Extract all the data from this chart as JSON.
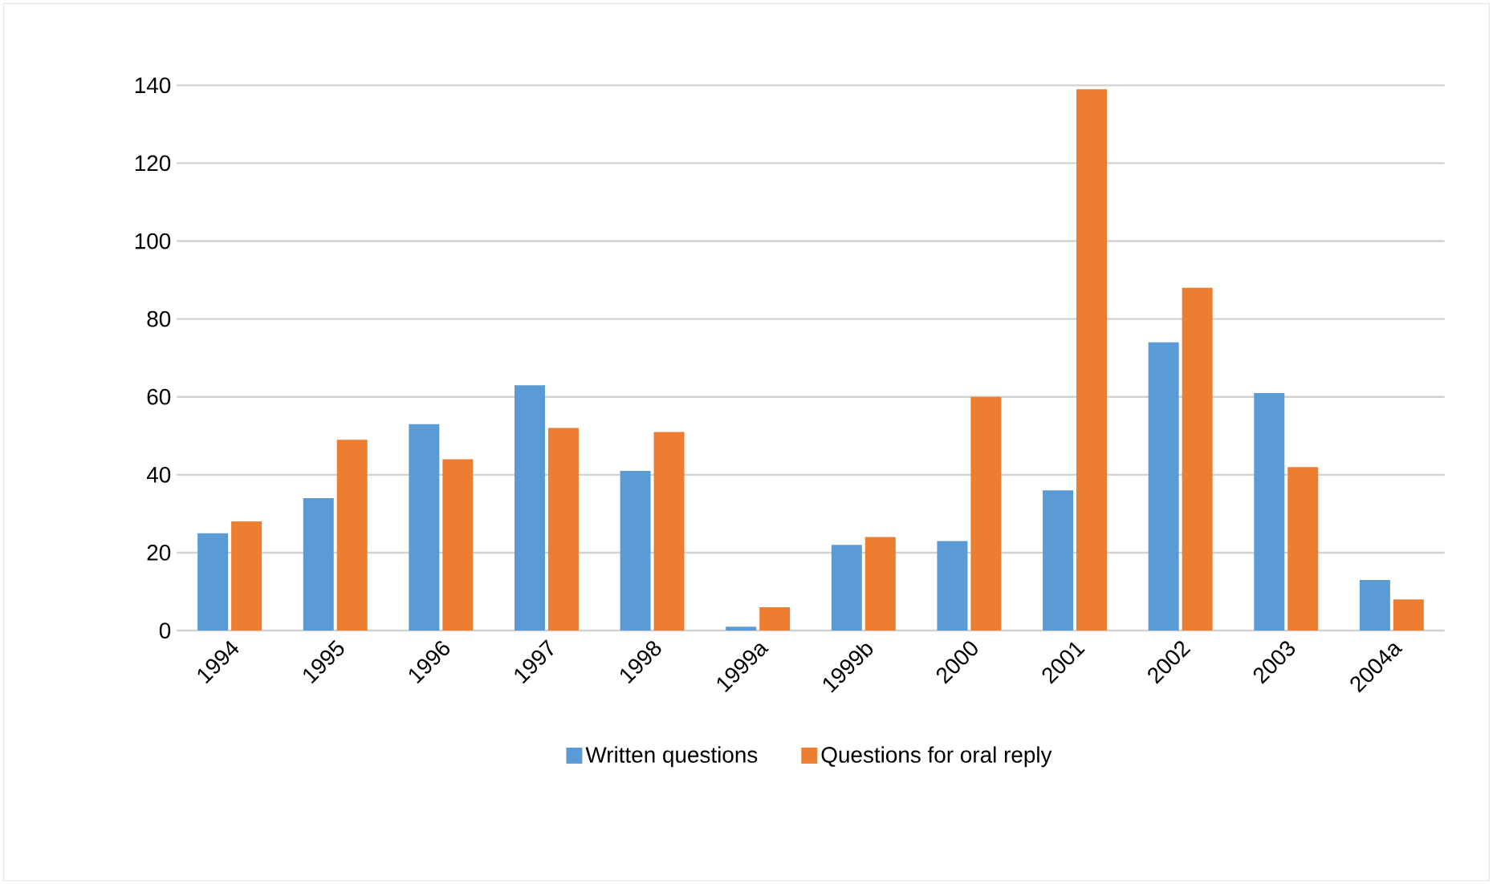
{
  "chart_data": {
    "type": "bar",
    "categories": [
      "1994",
      "1995",
      "1996",
      "1997",
      "1998",
      "1999a",
      "1999b",
      "2000",
      "2001",
      "2002",
      "2003",
      "2004a"
    ],
    "series": [
      {
        "name": "Written questions",
        "color": "#5b9bd5",
        "values": [
          25,
          34,
          53,
          63,
          41,
          1,
          22,
          23,
          36,
          74,
          61,
          13
        ]
      },
      {
        "name": "Questions for oral reply",
        "color": "#ed7d31",
        "values": [
          28,
          49,
          44,
          52,
          51,
          6,
          24,
          60,
          139,
          88,
          42,
          8
        ]
      }
    ],
    "ylim": [
      0,
      140
    ],
    "yticks": [
      0,
      20,
      40,
      60,
      80,
      100,
      120,
      140
    ],
    "grid": "y",
    "legend": "bottom"
  }
}
